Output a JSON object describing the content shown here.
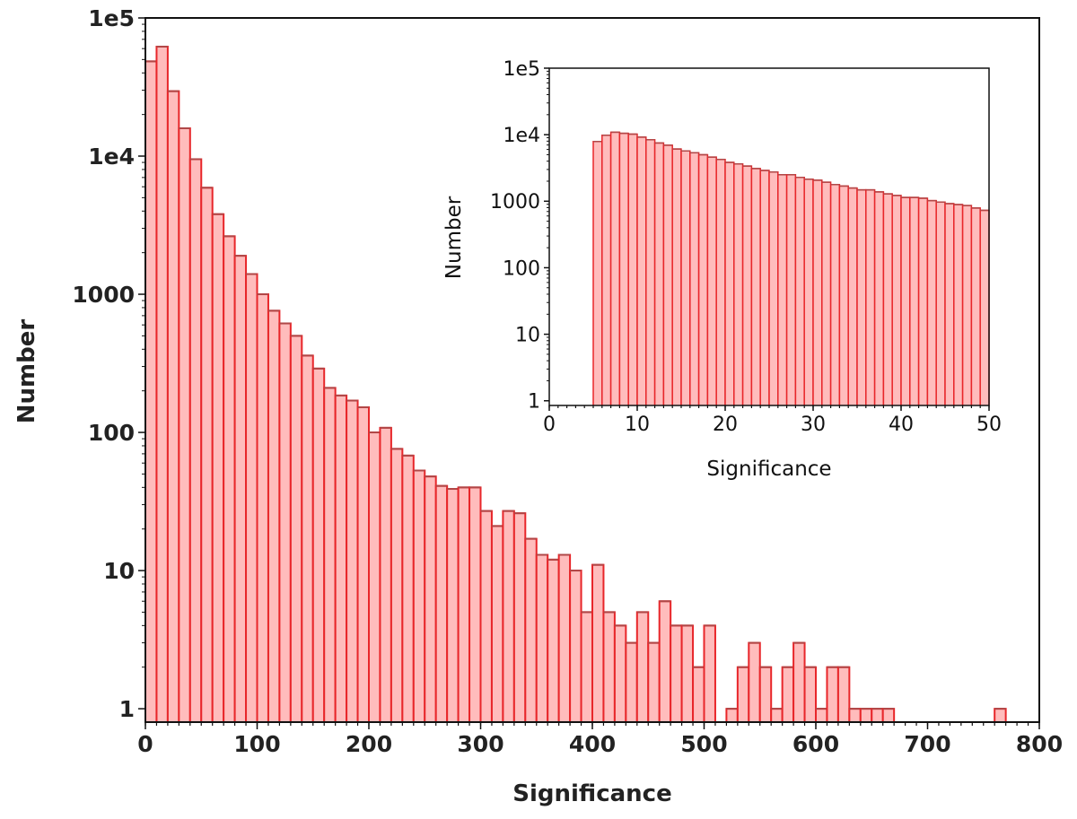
{
  "colors": {
    "bar_fill": "#ffbcbc",
    "bar_edge": "#e8262a",
    "bar_edge_dark": "#b04848",
    "axis": "#111111"
  },
  "chart_data": [
    {
      "type": "bar",
      "subtype": "histogram",
      "title": "",
      "xlabel": "Significance",
      "ylabel": "Number",
      "yscale": "log",
      "xlim": [
        0,
        800
      ],
      "ylim": [
        0.8,
        100000
      ],
      "bin_start": 0,
      "bin_width": 10,
      "xticks": [
        0,
        100,
        200,
        300,
        400,
        500,
        600,
        700,
        800
      ],
      "xtick_labels": [
        "0",
        "100",
        "200",
        "300",
        "400",
        "500",
        "600",
        "700",
        "800"
      ],
      "yticks": [
        1,
        10,
        100,
        1000,
        10000,
        100000
      ],
      "ytick_labels": [
        "1",
        "10",
        "100",
        "1000",
        "1e4",
        "1e5"
      ],
      "values": [
        48500,
        62000,
        29500,
        15900,
        9500,
        5900,
        3800,
        2630,
        1900,
        1400,
        1000,
        760,
        615,
        500,
        360,
        290,
        210,
        185,
        170,
        152,
        100,
        108,
        76,
        68,
        53,
        48,
        41,
        39,
        40,
        40,
        27,
        21,
        27,
        26,
        17,
        13,
        12,
        13,
        10,
        5,
        11,
        5,
        4,
        3,
        5,
        3,
        6,
        4,
        4,
        2,
        4,
        0,
        1,
        2,
        3,
        2,
        1,
        2,
        3,
        2,
        1,
        2,
        2,
        1,
        1,
        1,
        1,
        0,
        0,
        0,
        0,
        0,
        0,
        0,
        0,
        0,
        1
      ],
      "grid": false
    },
    {
      "type": "bar",
      "subtype": "histogram-inset",
      "title": "",
      "xlabel": "Significance",
      "ylabel": "Number",
      "yscale": "log",
      "xlim": [
        0,
        50
      ],
      "ylim": [
        0.85,
        100000
      ],
      "bin_start": 5,
      "bin_width": 1,
      "xticks": [
        0,
        10,
        20,
        30,
        40,
        50
      ],
      "xtick_labels": [
        "0",
        "10",
        "20",
        "30",
        "40",
        "50"
      ],
      "yticks": [
        1,
        10,
        100,
        1000,
        10000,
        100000
      ],
      "ytick_labels": [
        "1",
        "10",
        "100",
        "1000",
        "1e4",
        "1e5"
      ],
      "values": [
        7900,
        9800,
        10900,
        10500,
        10200,
        9200,
        8400,
        7500,
        6950,
        6100,
        5700,
        5350,
        5000,
        4600,
        4250,
        3830,
        3640,
        3380,
        3100,
        2900,
        2750,
        2500,
        2500,
        2280,
        2140,
        2070,
        1930,
        1780,
        1690,
        1580,
        1480,
        1480,
        1380,
        1290,
        1220,
        1140,
        1140,
        1110,
        1020,
        970,
        920,
        890,
        860,
        790,
        730
      ],
      "grid": false
    }
  ]
}
